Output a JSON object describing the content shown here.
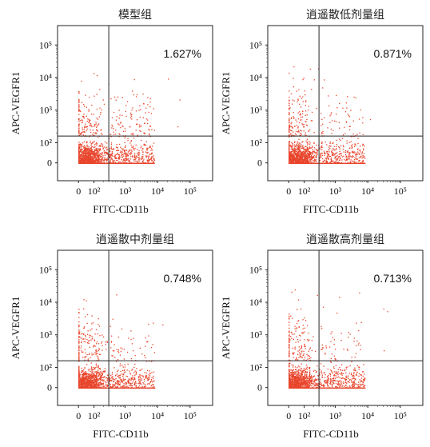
{
  "figure": {
    "y_tick_labels": [
      "0",
      "10²",
      "10³",
      "10⁴",
      "10⁵"
    ],
    "x_tick_labels": [
      "0",
      "10²",
      "10³",
      "10⁴",
      "10⁵"
    ]
  },
  "chart_data": [
    {
      "type": "scatter",
      "title": "模型组",
      "xlabel": "FITC-CD11b",
      "ylabel": "APC-VEGFR1",
      "x_scale": "biexponential",
      "y_scale": "biexponential",
      "gate": {
        "x": 300,
        "y": 160
      },
      "upper_right_percent_label": "1.627%",
      "upper_right_fraction": 0.01627
    },
    {
      "type": "scatter",
      "title": "逍遥散低剂量组",
      "xlabel": "FITC-CD11b",
      "ylabel": "APC-VEGFR1",
      "x_scale": "biexponential",
      "y_scale": "biexponential",
      "gate": {
        "x": 300,
        "y": 160
      },
      "upper_right_percent_label": "0.871%",
      "upper_right_fraction": 0.00871
    },
    {
      "type": "scatter",
      "title": "逍遥散中剂量组",
      "xlabel": "FITC-CD11b",
      "ylabel": "APC-VEGFR1",
      "x_scale": "biexponential",
      "y_scale": "biexponential",
      "gate": {
        "x": 300,
        "y": 160
      },
      "upper_right_percent_label": "0.748%",
      "upper_right_fraction": 0.00748
    },
    {
      "type": "scatter",
      "title": "逍遥散高剂量组",
      "xlabel": "FITC-CD11b",
      "ylabel": "APC-VEGFR1",
      "x_scale": "biexponential",
      "y_scale": "biexponential",
      "gate": {
        "x": 300,
        "y": 160
      },
      "upper_right_percent_label": "0.713%",
      "upper_right_fraction": 0.00713
    }
  ],
  "colors": {
    "dots": "#e8452c",
    "axes": "#222222"
  }
}
